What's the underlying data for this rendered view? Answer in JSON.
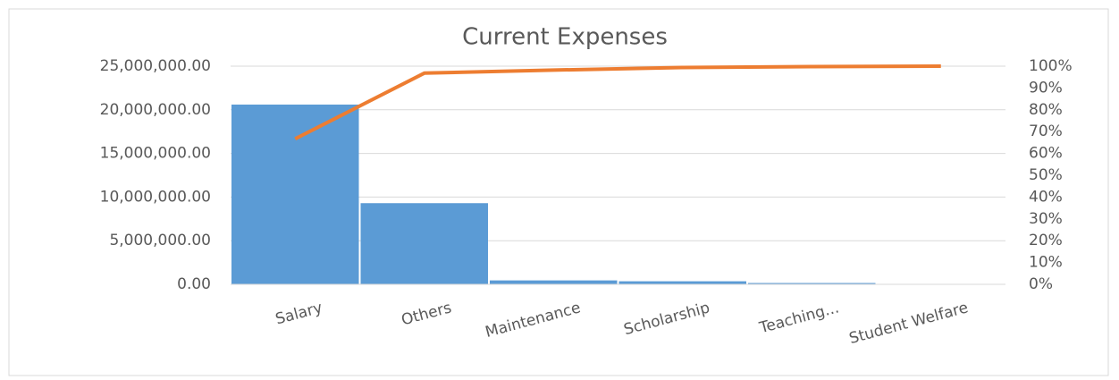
{
  "chart_data": {
    "type": "pareto",
    "title": "Current Expenses",
    "categories": [
      "Salary",
      "Others",
      "Maintenance",
      "Scholarship",
      "Teaching...",
      "Student Welfare"
    ],
    "series": [
      {
        "color": "#5b9bd5",
        "values": [
          20600000,
          9300000,
          450000,
          350000,
          150000,
          50000
        ]
      },
      {
        "color": "#ed7d31",
        "values": [
          66.7,
          96.8,
          98.2,
          99.4,
          99.8,
          100
        ],
        "axis": "y2"
      }
    ],
    "ylim": [
      0,
      25000000
    ],
    "yticks": [
      {
        "value": 0,
        "label": "0.00"
      },
      {
        "value": 5000000,
        "label": "5,000,000.00"
      },
      {
        "value": 10000000,
        "label": "10,000,000.00"
      },
      {
        "value": 15000000,
        "label": "15,000,000.00"
      },
      {
        "value": 20000000,
        "label": "20,000,000.00"
      },
      {
        "value": 25000000,
        "label": "25,000,000.00"
      }
    ],
    "y2lim": [
      0,
      100
    ],
    "y2ticks": [
      {
        "value": 0,
        "label": "0%"
      },
      {
        "value": 10,
        "label": "10%"
      },
      {
        "value": 20,
        "label": "20%"
      },
      {
        "value": 30,
        "label": "30%"
      },
      {
        "value": 40,
        "label": "40%"
      },
      {
        "value": 50,
        "label": "50%"
      },
      {
        "value": 60,
        "label": "60%"
      },
      {
        "value": 70,
        "label": "70%"
      },
      {
        "value": 80,
        "label": "80%"
      },
      {
        "value": 90,
        "label": "90%"
      },
      {
        "value": 100,
        "label": "100%"
      }
    ],
    "grid": true
  }
}
